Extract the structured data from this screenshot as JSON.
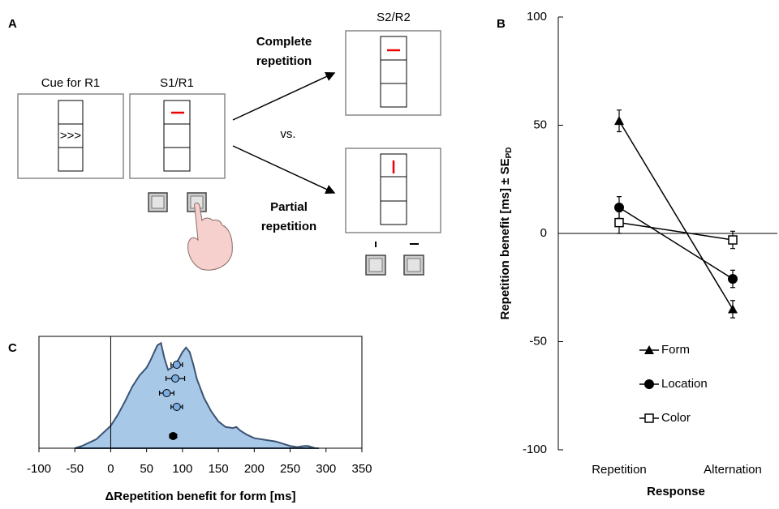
{
  "diagram_a": {
    "label": "A",
    "cue_label": "Cue for R1",
    "cue_symbol": ">>>",
    "s1_label": "S1/R1",
    "s2_label": "S2/R2",
    "complete": [
      "Complete",
      "repetition"
    ],
    "versus": "vs.",
    "partial": [
      "Partial",
      "repetition"
    ]
  },
  "chart_data": [
    {
      "type": "line",
      "label": "B",
      "ylabel": "Repetition benefit [ms] ± SE",
      "ylabel_sub": "PD",
      "xlabel": "Response",
      "categories": [
        "Repetition",
        "Alternation"
      ],
      "ylim": [
        -100,
        100
      ],
      "yticks": [
        100,
        50,
        0,
        -50,
        -100
      ],
      "series": [
        {
          "name": "Form",
          "color": "#000000",
          "marker": "triangle",
          "values": [
            52,
            -35
          ],
          "errors": [
            5,
            4
          ]
        },
        {
          "name": "Location",
          "color": "#000000",
          "marker": "circle",
          "values": [
            12,
            -21
          ],
          "errors": [
            5,
            4
          ]
        },
        {
          "name": "Color",
          "color": "#000000",
          "marker": "square-open",
          "values": [
            5,
            -3
          ],
          "errors": [
            5,
            4
          ]
        }
      ]
    },
    {
      "type": "area",
      "label": "C",
      "xlabel": "ΔRepetition benefit for form [ms]",
      "xlim": [
        -100,
        350
      ],
      "xticks": [
        -100,
        -50,
        0,
        50,
        100,
        150,
        200,
        250,
        300,
        350
      ],
      "ylim": [
        0,
        1
      ],
      "color": "#a8c8e8",
      "line_color": "#3b5372",
      "x": [
        -50,
        -40,
        -20,
        0,
        10,
        20,
        30,
        40,
        50,
        55,
        60,
        65,
        70,
        75,
        80,
        85,
        90,
        95,
        100,
        105,
        110,
        115,
        120,
        130,
        140,
        150,
        160,
        170,
        175,
        180,
        190,
        200,
        220,
        230,
        240,
        250,
        260,
        270,
        275,
        285,
        290
      ],
      "values": [
        0,
        0.02,
        0.08,
        0.2,
        0.3,
        0.42,
        0.55,
        0.65,
        0.72,
        0.78,
        0.85,
        0.92,
        0.94,
        0.8,
        0.7,
        0.72,
        0.75,
        0.8,
        0.86,
        0.9,
        0.86,
        0.75,
        0.62,
        0.45,
        0.33,
        0.24,
        0.19,
        0.18,
        0.19,
        0.16,
        0.12,
        0.09,
        0.07,
        0.06,
        0.04,
        0.02,
        0.01,
        0.02,
        0.02,
        0,
        0
      ],
      "points": {
        "values": [
          92,
          90,
          78,
          92,
          87
        ],
        "errors": [
          8,
          13,
          10,
          8,
          5
        ],
        "colors": [
          "#7aaee0",
          "#7aaee0",
          "#7aaee0",
          "#7aaee0",
          "#000000"
        ]
      }
    }
  ]
}
